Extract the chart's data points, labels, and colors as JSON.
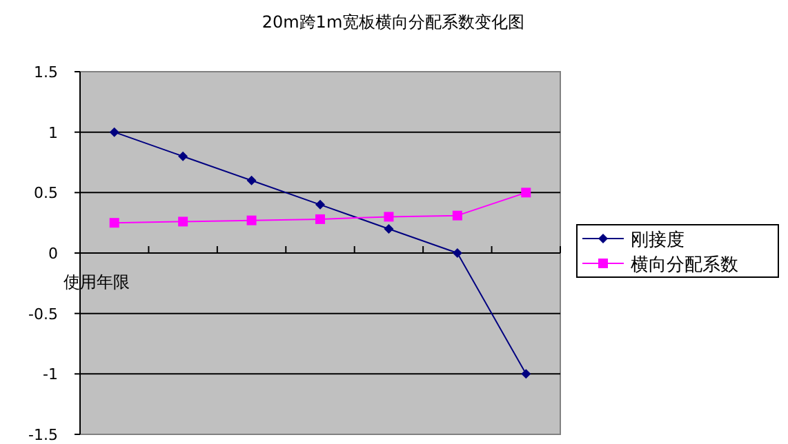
{
  "chart_data": {
    "type": "line",
    "title": "20m跨1m宽板横向分配系数变化图",
    "xlabel": "使用年限",
    "categories": [
      null,
      null,
      null,
      null,
      null,
      null,
      null
    ],
    "series": [
      {
        "name": "刚接度",
        "color": "#000080",
        "marker": "diamond",
        "values": [
          1,
          0.8,
          0.6,
          0.4,
          0.2,
          0,
          -1
        ]
      },
      {
        "name": "横向分配系数",
        "color": "#ff00ff",
        "marker": "square",
        "values": [
          0.25,
          0.26,
          0.27,
          0.28,
          0.3,
          0.31,
          0.5
        ]
      }
    ],
    "ylim": [
      -1.5,
      1.5
    ],
    "yticks": [
      -1.5,
      -1,
      -0.5,
      0,
      0.5,
      1,
      1.5
    ],
    "grid": "y",
    "legend": "right"
  }
}
